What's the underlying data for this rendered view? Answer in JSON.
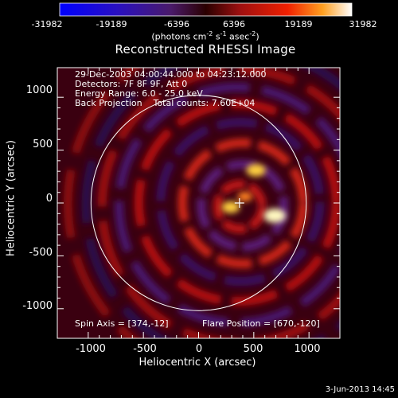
{
  "colorbar": {
    "ticks": [
      "-31982",
      "-19189",
      "-6396",
      "6396",
      "19189",
      "31982"
    ],
    "units_prefix": "(photons cm",
    "units_exp1": "-2",
    "units_mid": " s",
    "units_exp2": "-1",
    "units_mid2": " asec",
    "units_exp3": "-2",
    "units_suffix": ")"
  },
  "chart_data": {
    "type": "heatmap",
    "title": "Reconstructed RHESSI Image",
    "xlabel": "Heliocentric X (arcsec)",
    "ylabel": "Heliocentric Y (arcsec)",
    "xlim": [
      -1280,
      1280
    ],
    "ylim": [
      -1280,
      1280
    ],
    "xticks": [
      "-1000",
      "-500",
      "0",
      "500",
      "1000"
    ],
    "yticks": [
      "1000",
      "500",
      "0",
      "-500",
      "-1000"
    ],
    "colorbar_range": [
      -31982,
      31982
    ],
    "sources": [
      {
        "x": 520,
        "y": 310,
        "value": 25000
      },
      {
        "x": 690,
        "y": -120,
        "value": 31982
      },
      {
        "x": 290,
        "y": -40,
        "value": 22000
      },
      {
        "x": 420,
        "y": 60,
        "value": 14000
      }
    ],
    "limb_radius_arcsec": 975,
    "flare_position": [
      670,
      -120
    ],
    "image_center": [
      374,
      -12
    ]
  },
  "info": {
    "time_range": "29-Dec-2003 04:00:44.000 to 04:23:12.000",
    "detectors": "Detectors: 7F 8F 9F, Att 0",
    "energy_range": "Energy Range: 6.0 - 25.0 keV",
    "method": "Back Projection    Total counts: 7.60E+04",
    "spin_axis": "Spin Axis = [374,-12]",
    "flare_position": "Flare Position = [670,-120]"
  },
  "footer": {
    "date": "3-Jun-2013 14:45"
  }
}
